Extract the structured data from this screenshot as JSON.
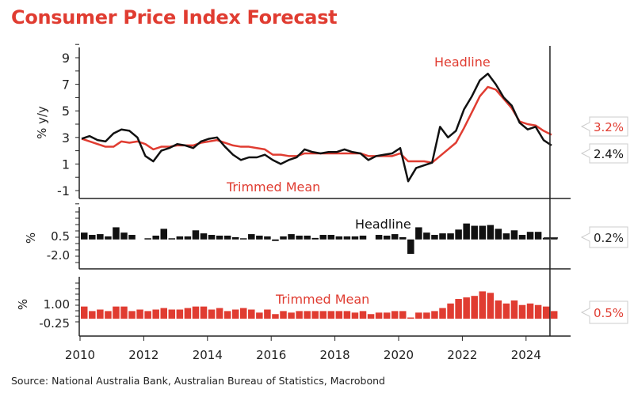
{
  "title": "Consumer Price Index Forecast",
  "source": "Source: National Australia Bank, Australian Bureau of Statistics, Macrobond",
  "colors": {
    "headline": "#111111",
    "trimmed_mean": "#e03c31"
  },
  "chart_data": [
    {
      "type": "line",
      "ylabel": "% y/y",
      "ylim": [
        -2,
        10
      ],
      "yticks": [
        "9",
        "7",
        "5",
        "3",
        "1",
        "-1"
      ],
      "x_start": "2010Q1",
      "frequency": "quarterly",
      "annotations": [
        "Headline",
        "Trimmed Mean"
      ],
      "callouts": [
        {
          "text": "3.2%",
          "series": "Trimmed Mean"
        },
        {
          "text": "2.4%",
          "series": "Headline"
        }
      ],
      "series": [
        {
          "name": "Headline",
          "values": [
            2.9,
            3.1,
            2.8,
            2.7,
            3.3,
            3.6,
            3.5,
            3.0,
            1.6,
            1.2,
            2.0,
            2.2,
            2.5,
            2.4,
            2.2,
            2.7,
            2.9,
            3.0,
            2.3,
            1.7,
            1.3,
            1.5,
            1.5,
            1.7,
            1.3,
            1.0,
            1.3,
            1.5,
            2.1,
            1.9,
            1.8,
            1.9,
            1.9,
            2.1,
            1.9,
            1.8,
            1.3,
            1.6,
            1.7,
            1.8,
            2.2,
            -0.3,
            0.7,
            0.9,
            1.1,
            3.8,
            3.0,
            3.5,
            5.1,
            6.1,
            7.3,
            7.8,
            7.0,
            6.0,
            5.4,
            4.1,
            3.6,
            3.8,
            2.8,
            2.4
          ]
        },
        {
          "name": "Trimmed Mean",
          "values": [
            2.9,
            2.7,
            2.5,
            2.3,
            2.3,
            2.7,
            2.6,
            2.7,
            2.5,
            2.1,
            2.3,
            2.3,
            2.4,
            2.4,
            2.4,
            2.6,
            2.7,
            2.8,
            2.6,
            2.4,
            2.3,
            2.3,
            2.2,
            2.1,
            1.7,
            1.7,
            1.6,
            1.6,
            1.8,
            1.8,
            1.8,
            1.8,
            1.8,
            1.8,
            1.8,
            1.8,
            1.6,
            1.6,
            1.6,
            1.6,
            1.8,
            1.2,
            1.2,
            1.2,
            1.1,
            1.6,
            2.1,
            2.6,
            3.7,
            4.9,
            6.1,
            6.8,
            6.6,
            5.9,
            5.2,
            4.2,
            4.0,
            3.9,
            3.5,
            3.2
          ]
        }
      ]
    },
    {
      "type": "bar",
      "ylabel": "%",
      "yticks": [
        "0.5",
        "-2.0"
      ],
      "annotation": "Headline",
      "callout": "0.2%",
      "series": [
        {
          "name": "Headline",
          "values": [
            0.9,
            0.6,
            0.7,
            0.4,
            1.6,
            0.9,
            0.6,
            null,
            0.0,
            0.5,
            1.4,
            0.1,
            0.4,
            0.4,
            1.2,
            0.8,
            0.6,
            0.5,
            0.5,
            0.3,
            0.1,
            0.7,
            0.5,
            0.4,
            -0.2,
            0.4,
            0.7,
            0.5,
            0.5,
            0.2,
            0.6,
            0.6,
            0.4,
            0.4,
            0.4,
            0.5,
            null,
            0.6,
            0.5,
            0.7,
            0.3,
            -1.9,
            1.6,
            0.9,
            0.6,
            0.8,
            0.8,
            1.3,
            2.1,
            1.8,
            1.8,
            1.9,
            1.4,
            0.8,
            1.2,
            0.6,
            1.0,
            1.0,
            0.2,
            0.2
          ]
        }
      ]
    },
    {
      "type": "bar",
      "ylabel": "%",
      "yticks": [
        "1.00",
        "-0.25"
      ],
      "annotation": "Trimmed Mean",
      "callout": "0.5%",
      "xticks": [
        "2010",
        "2012",
        "2014",
        "2016",
        "2018",
        "2020",
        "2022",
        "2024"
      ],
      "series": [
        {
          "name": "Trimmed Mean",
          "values": [
            0.8,
            0.5,
            0.6,
            0.5,
            0.8,
            0.8,
            0.5,
            0.6,
            0.5,
            0.6,
            0.7,
            0.6,
            0.6,
            0.7,
            0.8,
            0.8,
            0.6,
            0.7,
            0.5,
            0.6,
            0.7,
            0.6,
            0.4,
            0.6,
            0.3,
            0.5,
            0.4,
            0.5,
            0.5,
            0.5,
            0.5,
            0.5,
            0.5,
            0.5,
            0.4,
            0.5,
            0.3,
            0.4,
            0.4,
            0.5,
            0.5,
            0.0,
            0.4,
            0.4,
            0.5,
            0.7,
            1.0,
            1.3,
            1.4,
            1.5,
            1.8,
            1.7,
            1.2,
            1.0,
            1.2,
            0.9,
            1.0,
            0.9,
            0.8,
            0.5
          ]
        }
      ]
    }
  ]
}
